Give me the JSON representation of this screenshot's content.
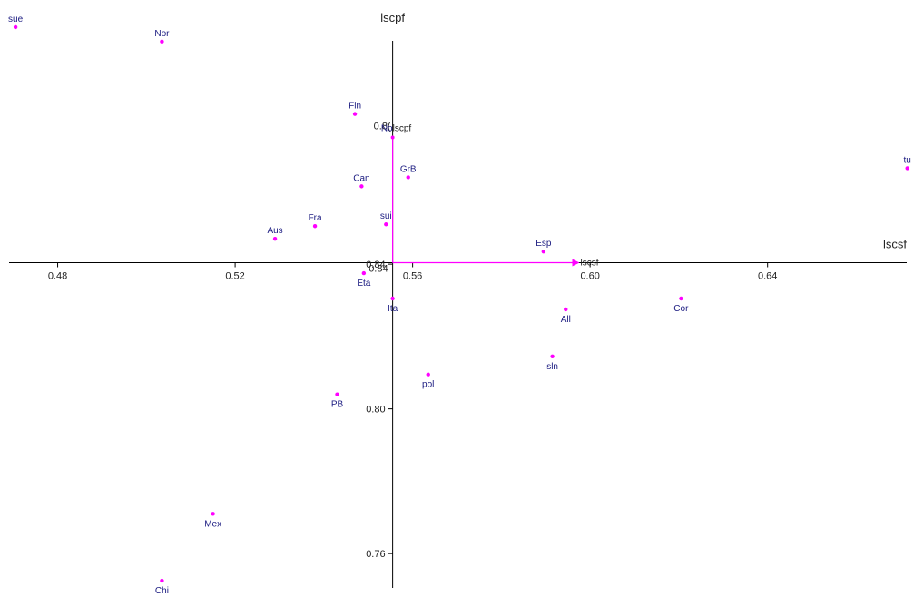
{
  "chart_data": {
    "type": "scatter",
    "xlabel": "lscsf",
    "ylabel": "lscpf",
    "xlim": [
      0.467,
      0.673
    ],
    "ylim": [
      0.748,
      0.913
    ],
    "x_ticks": [
      0.48,
      0.52,
      0.56,
      0.6,
      0.64
    ],
    "y_ticks": [
      0.76,
      0.8,
      0.84
    ],
    "origin": {
      "x": 0.5555,
      "y": 0.8404,
      "label": "0.84"
    },
    "marker_color": "#ff00ff",
    "label_color": "#1a1a80",
    "variables": [
      {
        "name": "lscsf",
        "x": 0.597,
        "y": 0.8404
      },
      {
        "name": "lscpf",
        "x": 0.5555,
        "y": 0.875,
        "tick_label": "0.8(",
        "prefix_label": "No"
      }
    ],
    "points": [
      {
        "label": "sue",
        "x": 0.4705,
        "y": 0.9055
      },
      {
        "label": "Nor",
        "x": 0.5035,
        "y": 0.9015
      },
      {
        "label": "Fin",
        "x": 0.547,
        "y": 0.8815
      },
      {
        "label": "GrB",
        "x": 0.559,
        "y": 0.864
      },
      {
        "label": "Can",
        "x": 0.5485,
        "y": 0.8615
      },
      {
        "label": "tu",
        "x": 0.6715,
        "y": 0.8665
      },
      {
        "label": "sui",
        "x": 0.554,
        "y": 0.851
      },
      {
        "label": "Fra",
        "x": 0.538,
        "y": 0.8505
      },
      {
        "label": "Aus",
        "x": 0.529,
        "y": 0.847
      },
      {
        "label": "Esp",
        "x": 0.5895,
        "y": 0.8435
      },
      {
        "label": "Eta",
        "x": 0.549,
        "y": 0.8375
      },
      {
        "label": "Ita",
        "x": 0.5555,
        "y": 0.8305
      },
      {
        "label": "Cor",
        "x": 0.6205,
        "y": 0.8305
      },
      {
        "label": "All",
        "x": 0.5945,
        "y": 0.8275
      },
      {
        "label": "sln",
        "x": 0.5915,
        "y": 0.8145
      },
      {
        "label": "pol",
        "x": 0.5635,
        "y": 0.8095
      },
      {
        "label": "PB",
        "x": 0.543,
        "y": 0.804
      },
      {
        "label": "Mex",
        "x": 0.515,
        "y": 0.771
      },
      {
        "label": "Chi",
        "x": 0.5035,
        "y": 0.7525
      }
    ]
  }
}
